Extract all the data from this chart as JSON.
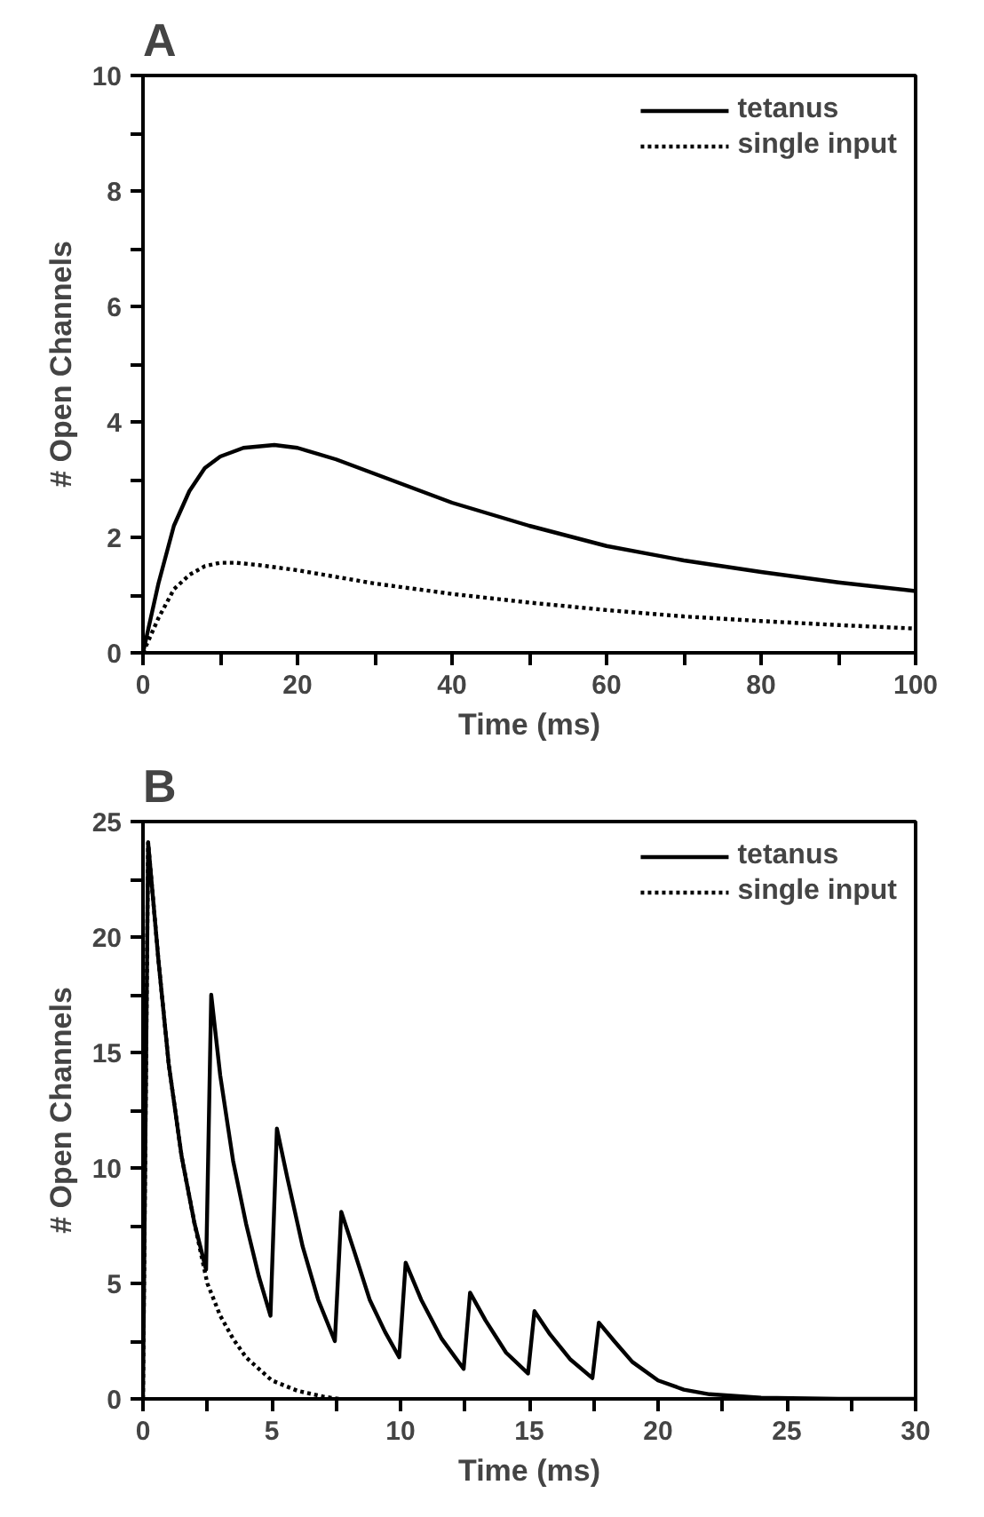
{
  "chart_data": [
    {
      "type": "line",
      "title": "A",
      "xlabel": "Time (ms)",
      "ylabel": "# Open Channels",
      "xlim": [
        0,
        100
      ],
      "ylim": [
        0,
        10
      ],
      "xticks": [
        0,
        {
          "value": 10,
          "label": null
        },
        20,
        {
          "value": 30,
          "label": null
        },
        40,
        {
          "value": 50,
          "label": null
        },
        60,
        {
          "value": 70,
          "label": null
        },
        80,
        {
          "value": 90,
          "label": null
        },
        100
      ],
      "yticks": [
        0,
        {
          "value": 1,
          "label": null
        },
        2,
        {
          "value": 3,
          "label": null
        },
        4,
        {
          "value": 5,
          "label": null
        },
        6,
        {
          "value": 7,
          "label": null
        },
        8,
        {
          "value": 9,
          "label": null
        },
        10
      ],
      "grid": false,
      "legend": "top right",
      "series": [
        {
          "name": "tetanus",
          "color": "#000000",
          "line_style": "solid",
          "x": [
            0,
            2,
            4,
            6,
            8,
            10,
            13,
            17,
            20,
            25,
            30,
            40,
            50,
            60,
            70,
            80,
            90,
            100
          ],
          "values": [
            0,
            1.2,
            2.2,
            2.8,
            3.2,
            3.4,
            3.55,
            3.6,
            3.55,
            3.35,
            3.1,
            2.6,
            2.2,
            1.85,
            1.6,
            1.4,
            1.22,
            1.07
          ]
        },
        {
          "name": "single input",
          "color": "#000000",
          "line_style": "dotted",
          "x": [
            0,
            2,
            4,
            6,
            8,
            10,
            12,
            15,
            20,
            30,
            40,
            50,
            60,
            70,
            80,
            90,
            100
          ],
          "values": [
            0,
            0.6,
            1.1,
            1.35,
            1.5,
            1.56,
            1.56,
            1.52,
            1.43,
            1.2,
            1.02,
            0.87,
            0.74,
            0.63,
            0.55,
            0.48,
            0.42
          ]
        }
      ]
    },
    {
      "type": "line",
      "title": "B",
      "xlabel": "Time (ms)",
      "ylabel": "# Open Channels",
      "xlim": [
        0,
        30
      ],
      "ylim": [
        0,
        25
      ],
      "xticks": [
        0,
        {
          "value": 2.5,
          "label": null
        },
        5,
        {
          "value": 7.5,
          "label": null
        },
        10,
        {
          "value": 12.5,
          "label": null
        },
        15,
        {
          "value": 17.5,
          "label": null
        },
        20,
        {
          "value": 22.5,
          "label": null
        },
        25,
        {
          "value": 27.5,
          "label": null
        },
        30
      ],
      "yticks": [
        0,
        {
          "value": 2.5,
          "label": null
        },
        5,
        {
          "value": 7.5,
          "label": null
        },
        10,
        {
          "value": 12.5,
          "label": null
        },
        15,
        {
          "value": 17.5,
          "label": null
        },
        20,
        {
          "value": 22.5,
          "label": null
        },
        25
      ],
      "grid": false,
      "legend": "top right",
      "series": [
        {
          "name": "tetanus",
          "color": "#000000",
          "line_style": "solid",
          "x": [
            0,
            0.2,
            0.6,
            1.0,
            1.5,
            2.0,
            2.45,
            2.65,
            3.0,
            3.5,
            4.0,
            4.5,
            4.95,
            5.2,
            5.6,
            6.2,
            6.8,
            7.45,
            7.7,
            8.2,
            8.8,
            9.4,
            9.95,
            10.2,
            10.8,
            11.6,
            12.45,
            12.7,
            13.3,
            14.1,
            14.95,
            15.2,
            15.8,
            16.6,
            17.45,
            17.7,
            18.3,
            19.0,
            20.0,
            21.0,
            22.0,
            24.0,
            27.0,
            30.0
          ],
          "values": [
            0,
            24.1,
            19.0,
            14.5,
            10.5,
            7.6,
            5.6,
            17.5,
            14.0,
            10.3,
            7.6,
            5.3,
            3.6,
            11.7,
            9.6,
            6.6,
            4.3,
            2.5,
            8.1,
            6.4,
            4.3,
            2.9,
            1.8,
            5.9,
            4.3,
            2.6,
            1.3,
            4.6,
            3.4,
            2.0,
            1.1,
            3.8,
            2.8,
            1.7,
            0.9,
            3.3,
            2.5,
            1.6,
            0.8,
            0.4,
            0.2,
            0.05,
            0,
            0
          ]
        },
        {
          "name": "single input",
          "color": "#000000",
          "line_style": "dotted",
          "x": [
            0,
            0.2,
            0.6,
            1.0,
            1.5,
            2.0,
            2.5,
            3.0,
            3.5,
            4.0,
            5.0,
            6.0,
            7.0,
            7.6
          ],
          "values": [
            0,
            24.1,
            19.0,
            14.5,
            10.5,
            7.6,
            5.0,
            3.6,
            2.6,
            1.8,
            0.8,
            0.35,
            0.1,
            0
          ]
        }
      ]
    }
  ]
}
